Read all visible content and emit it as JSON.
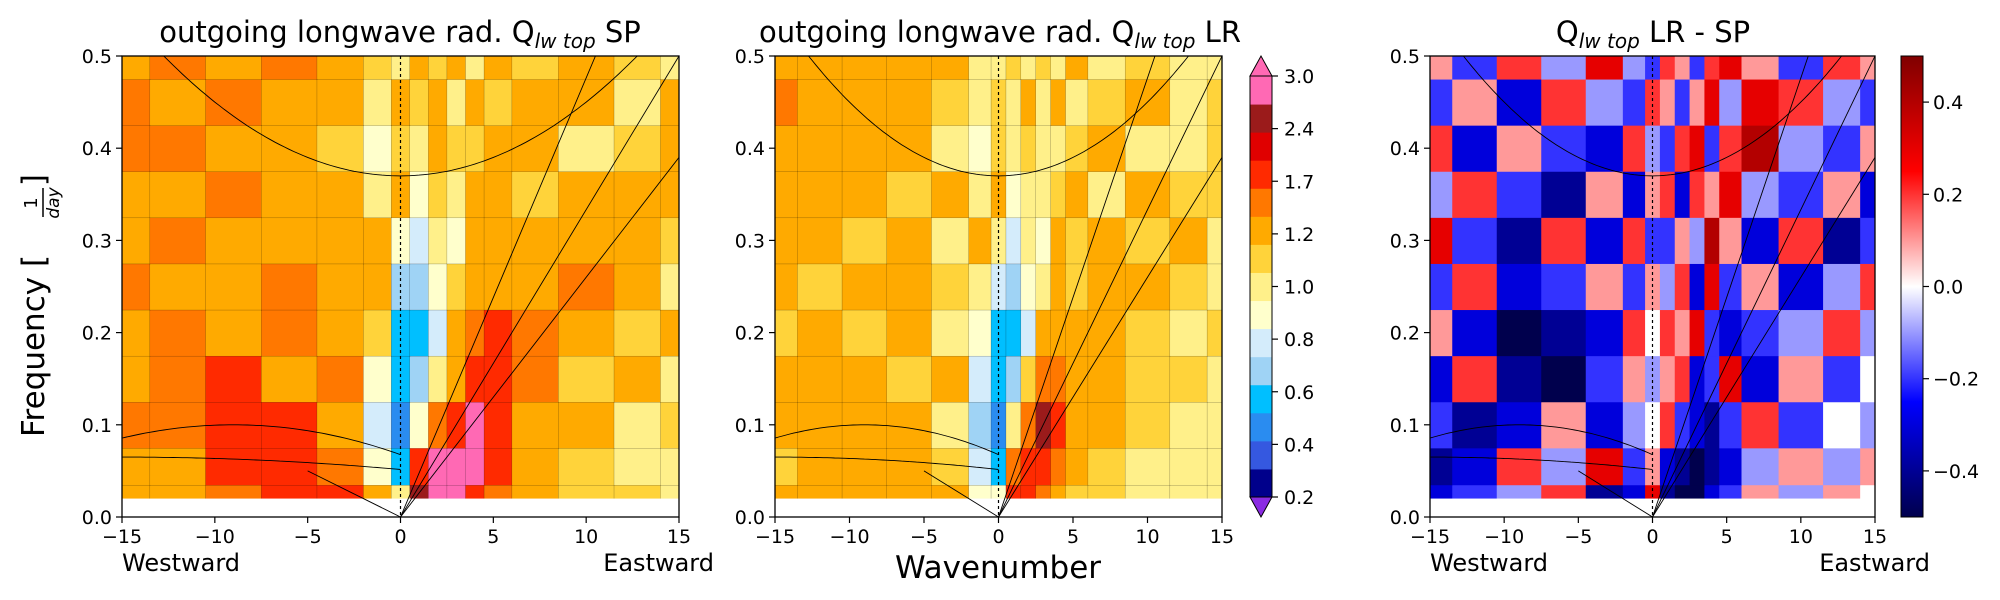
{
  "figure": {
    "ylabel_prefix": "Frequency [",
    "ylabel_frac_num": "1",
    "ylabel_frac_den": "day",
    "ylabel_suffix": "]",
    "xlabel": "Wavenumber",
    "westward": "Westward",
    "eastward": "Eastward"
  },
  "chart_data": [
    {
      "type": "heatmap",
      "title_prefix": "outgoing longwave rad. Q",
      "title_sub": "lw top",
      "title_suffix": " SP",
      "x_range": [
        -15,
        15
      ],
      "y_range": [
        0.0,
        0.5
      ],
      "x_ticks": [
        "−15",
        "−10",
        "−5",
        "0",
        "5",
        "10",
        "15"
      ],
      "x_tick_values": [
        -15,
        -10,
        -5,
        0,
        5,
        10,
        15
      ],
      "y_ticks": [
        "0.0",
        "0.1",
        "0.2",
        "0.3",
        "0.4",
        "0.5"
      ],
      "y_tick_values": [
        0.0,
        0.1,
        0.2,
        0.3,
        0.4,
        0.5
      ],
      "colormap": "diverging-power",
      "grid_x": [
        -15,
        -12,
        -9,
        -6,
        -3,
        -1,
        0,
        1,
        2,
        3,
        4,
        5,
        7,
        10,
        13,
        15
      ],
      "grid_y": [
        0.02,
        0.05,
        0.1,
        0.15,
        0.2,
        0.25,
        0.3,
        0.35,
        0.4,
        0.45,
        0.5
      ],
      "values": [
        [
          1.3,
          1.4,
          1.6,
          1.9,
          2.0,
          1.2,
          1.0,
          2.3,
          3.0,
          2.6,
          1.9,
          1.5,
          1.2,
          1.1,
          1.1,
          1.0
        ],
        [
          1.2,
          1.4,
          1.7,
          1.8,
          1.6,
          0.9,
          0.6,
          1.9,
          2.6,
          2.9,
          2.5,
          1.7,
          1.3,
          1.1,
          1.0,
          1.0
        ],
        [
          1.5,
          1.6,
          1.9,
          1.8,
          1.4,
          0.8,
          0.5,
          0.9,
          1.6,
          2.0,
          2.4,
          1.8,
          1.3,
          1.2,
          1.0,
          1.1
        ],
        [
          1.4,
          1.5,
          1.7,
          1.4,
          1.5,
          0.9,
          0.6,
          0.7,
          1.0,
          1.4,
          1.8,
          1.7,
          1.5,
          1.1,
          1.2,
          1.0
        ],
        [
          1.3,
          1.5,
          1.3,
          1.6,
          1.4,
          1.1,
          0.6,
          0.6,
          0.8,
          1.2,
          1.5,
          1.8,
          1.6,
          1.3,
          1.1,
          1.2
        ],
        [
          1.5,
          1.3,
          1.4,
          1.5,
          1.3,
          1.2,
          0.7,
          0.7,
          0.9,
          1.1,
          1.3,
          1.4,
          1.3,
          1.5,
          1.3,
          1.0
        ],
        [
          1.3,
          1.6,
          1.3,
          1.4,
          1.2,
          1.4,
          0.9,
          0.8,
          1.0,
          0.9,
          1.3,
          1.2,
          1.4,
          1.2,
          1.4,
          1.1
        ],
        [
          1.4,
          1.3,
          1.5,
          1.2,
          1.3,
          1.0,
          1.3,
          0.9,
          1.1,
          1.0,
          1.2,
          1.3,
          1.1,
          1.3,
          1.2,
          1.3
        ],
        [
          1.5,
          1.5,
          1.3,
          1.4,
          1.1,
          0.9,
          1.1,
          1.0,
          1.2,
          1.1,
          1.1,
          1.2,
          1.4,
          1.0,
          1.1,
          1.2
        ],
        [
          1.6,
          1.4,
          1.5,
          1.3,
          1.2,
          1.0,
          1.2,
          1.1,
          1.3,
          1.0,
          1.3,
          1.1,
          1.2,
          1.3,
          1.0,
          1.2
        ],
        [
          1.4,
          1.5,
          1.3,
          1.5,
          1.3,
          1.1,
          1.0,
          1.2,
          1.1,
          1.2,
          1.0,
          1.3,
          1.1,
          1.2,
          1.1,
          1.0
        ]
      ]
    },
    {
      "type": "heatmap",
      "title_prefix": "outgoing longwave rad. Q",
      "title_sub": "lw top",
      "title_suffix": " LR",
      "x_range": [
        -15,
        15
      ],
      "y_range": [
        0.0,
        0.5
      ],
      "x_ticks": [
        "−15",
        "−10",
        "−5",
        "0",
        "5",
        "10",
        "15"
      ],
      "x_tick_values": [
        -15,
        -10,
        -5,
        0,
        5,
        10,
        15
      ],
      "y_ticks": [
        "0.0",
        "0.1",
        "0.2",
        "0.3",
        "0.4",
        "0.5"
      ],
      "y_tick_values": [
        0.0,
        0.1,
        0.2,
        0.3,
        0.4,
        0.5
      ],
      "colormap": "power",
      "colorbar_levels": [
        0.2,
        0.4,
        0.6,
        0.8,
        1.0,
        1.2,
        1.7,
        2.4,
        3.0
      ],
      "colorbar_ticks": [
        "0.2",
        "0.4",
        "0.6",
        "0.8",
        "1.0",
        "1.2",
        "1.7",
        "2.4",
        "3.0"
      ],
      "grid_x": [
        -15,
        -12,
        -9,
        -6,
        -3,
        -1,
        0,
        1,
        2,
        3,
        4,
        5,
        7,
        10,
        13,
        15
      ],
      "grid_y": [
        0.02,
        0.05,
        0.1,
        0.15,
        0.2,
        0.25,
        0.3,
        0.35,
        0.4,
        0.45,
        0.5
      ],
      "values": [
        [
          1.2,
          1.2,
          1.3,
          1.4,
          1.2,
          0.9,
          0.9,
          2.0,
          1.8,
          1.5,
          1.3,
          1.1,
          1.1,
          1.0,
          1.0,
          1.0
        ],
        [
          1.1,
          1.2,
          1.2,
          1.3,
          1.1,
          0.8,
          0.6,
          1.6,
          2.0,
          1.9,
          1.6,
          1.3,
          1.1,
          1.0,
          1.0,
          1.0
        ],
        [
          1.3,
          1.2,
          1.4,
          1.3,
          1.0,
          0.7,
          0.5,
          1.0,
          1.6,
          2.2,
          1.8,
          1.3,
          1.2,
          1.1,
          1.0,
          1.0
        ],
        [
          1.2,
          1.3,
          1.2,
          1.1,
          1.2,
          0.8,
          0.6,
          0.7,
          1.1,
          1.5,
          1.6,
          1.4,
          1.2,
          1.1,
          1.1,
          1.0
        ],
        [
          1.1,
          1.2,
          1.1,
          1.3,
          1.0,
          0.9,
          0.6,
          0.6,
          0.8,
          1.2,
          1.3,
          1.4,
          1.3,
          1.1,
          1.0,
          1.1
        ],
        [
          1.3,
          1.1,
          1.2,
          1.2,
          1.1,
          1.0,
          0.8,
          0.7,
          0.9,
          1.0,
          1.2,
          1.1,
          1.2,
          1.3,
          1.1,
          1.0
        ],
        [
          1.2,
          1.4,
          1.1,
          1.2,
          1.0,
          1.2,
          1.0,
          0.8,
          1.0,
          0.9,
          1.2,
          1.1,
          1.2,
          1.1,
          1.2,
          1.0
        ],
        [
          1.3,
          1.2,
          1.3,
          1.1,
          1.2,
          1.0,
          1.2,
          0.9,
          1.0,
          1.0,
          1.1,
          1.2,
          1.0,
          1.2,
          1.1,
          1.1
        ],
        [
          1.4,
          1.3,
          1.2,
          1.3,
          1.0,
          0.9,
          1.1,
          1.0,
          1.1,
          1.0,
          1.0,
          1.1,
          1.2,
          1.0,
          1.0,
          1.1
        ],
        [
          1.5,
          1.3,
          1.4,
          1.2,
          1.1,
          1.0,
          1.1,
          1.0,
          1.2,
          1.0,
          1.2,
          1.0,
          1.1,
          1.2,
          1.0,
          1.1
        ],
        [
          1.3,
          1.4,
          1.2,
          1.4,
          1.2,
          1.0,
          1.0,
          1.1,
          1.0,
          1.1,
          1.0,
          1.2,
          1.0,
          1.1,
          1.0,
          1.0
        ]
      ]
    },
    {
      "type": "heatmap",
      "title_prefix": "Q",
      "title_sub": "lw top",
      "title_suffix": " LR - SP",
      "x_range": [
        -15,
        15
      ],
      "y_range": [
        0.0,
        0.5
      ],
      "x_ticks": [
        "−15",
        "−10",
        "−5",
        "0",
        "5",
        "10",
        "15"
      ],
      "x_tick_values": [
        -15,
        -10,
        -5,
        0,
        5,
        10,
        15
      ],
      "y_ticks": [
        "0.0",
        "0.1",
        "0.2",
        "0.3",
        "0.4",
        "0.5"
      ],
      "y_tick_values": [
        0.0,
        0.1,
        0.2,
        0.3,
        0.4,
        0.5
      ],
      "colormap": "seismic",
      "color_range": [
        -0.5,
        0.5
      ],
      "colorbar_ticks": [
        "−0.4",
        "−0.2",
        "0.0",
        "0.2",
        "0.4"
      ],
      "colorbar_tick_values": [
        -0.4,
        -0.2,
        0.0,
        0.2,
        0.4
      ],
      "grid_x": [
        -15,
        -12,
        -9,
        -6,
        -3,
        -1,
        0,
        1,
        2,
        3,
        4,
        5,
        7,
        10,
        13,
        15
      ],
      "grid_y": [
        0.02,
        0.05,
        0.1,
        0.15,
        0.2,
        0.25,
        0.3,
        0.35,
        0.4,
        0.45,
        0.5
      ],
      "values": [
        [
          -0.3,
          -0.2,
          -0.1,
          0.2,
          -0.4,
          -0.3,
          0.3,
          -0.4,
          -0.5,
          -0.5,
          -0.3,
          -0.2,
          0.1,
          -0.1,
          0.1,
          0.0
        ],
        [
          -0.4,
          -0.3,
          0.2,
          -0.1,
          0.3,
          -0.2,
          0.1,
          -0.3,
          -0.4,
          -0.5,
          -0.4,
          -0.3,
          -0.1,
          0.1,
          -0.1,
          0.1
        ],
        [
          -0.2,
          -0.4,
          -0.3,
          0.1,
          -0.3,
          -0.1,
          0.0,
          0.2,
          -0.2,
          -0.3,
          -0.4,
          -0.2,
          0.2,
          -0.2,
          0.0,
          -0.1
        ],
        [
          -0.3,
          0.2,
          -0.4,
          -0.5,
          -0.2,
          0.1,
          -0.1,
          0.1,
          0.2,
          -0.3,
          -0.2,
          0.3,
          -0.3,
          0.1,
          -0.2,
          0.0
        ],
        [
          0.1,
          -0.3,
          -0.5,
          -0.4,
          -0.3,
          0.2,
          0.0,
          0.2,
          0.1,
          0.3,
          -0.2,
          -0.3,
          -0.2,
          -0.1,
          0.2,
          -0.1
        ],
        [
          -0.2,
          0.2,
          -0.3,
          -0.2,
          0.1,
          -0.2,
          0.1,
          -0.1,
          0.2,
          -0.3,
          0.3,
          -0.2,
          0.1,
          -0.3,
          -0.1,
          0.2
        ],
        [
          0.3,
          -0.2,
          -0.4,
          0.2,
          -0.3,
          0.2,
          -0.2,
          -0.2,
          0.1,
          -0.1,
          0.4,
          0.1,
          -0.3,
          0.2,
          -0.4,
          -0.2
        ],
        [
          -0.1,
          0.2,
          -0.2,
          -0.4,
          0.1,
          -0.3,
          0.1,
          0.2,
          -0.3,
          0.2,
          0.1,
          0.3,
          -0.1,
          -0.2,
          0.1,
          -0.3
        ],
        [
          0.2,
          -0.3,
          0.1,
          -0.2,
          -0.3,
          0.2,
          -0.1,
          -0.2,
          0.2,
          0.3,
          -0.2,
          0.2,
          0.4,
          -0.1,
          -0.2,
          0.1
        ],
        [
          -0.2,
          0.1,
          -0.3,
          0.2,
          -0.1,
          -0.2,
          0.2,
          0.1,
          -0.2,
          0.1,
          0.3,
          -0.1,
          0.3,
          0.2,
          -0.1,
          -0.2
        ],
        [
          0.1,
          -0.2,
          0.2,
          -0.1,
          0.3,
          -0.1,
          -0.2,
          0.2,
          0.1,
          -0.2,
          0.2,
          0.3,
          0.1,
          -0.2,
          0.2,
          0.1
        ]
      ]
    }
  ]
}
